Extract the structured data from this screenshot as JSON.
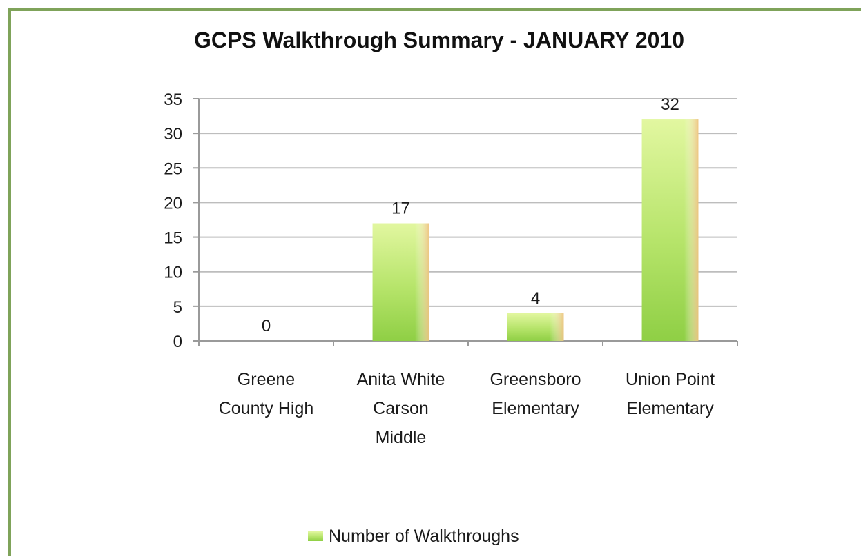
{
  "chart_data": {
    "type": "bar",
    "title": "GCPS Walkthrough Summary - JANUARY 2010",
    "categories": [
      [
        "Greene",
        "County High"
      ],
      [
        "Anita White",
        "Carson",
        "Middle"
      ],
      [
        "Greensboro",
        "Elementary"
      ],
      [
        "Union Point",
        "Elementary"
      ]
    ],
    "series": [
      {
        "name": "Number of Walkthroughs",
        "values": [
          0,
          17,
          4,
          32
        ]
      }
    ],
    "data_labels": [
      "0",
      "17",
      "4",
      "32"
    ],
    "ylim": [
      0,
      35
    ],
    "yticks": [
      0,
      5,
      10,
      15,
      20,
      25,
      30,
      35
    ],
    "grid": true,
    "legend": "bottom",
    "colors": {
      "bar_top": "#e2f7a0",
      "bar_mid": "#b6e46a",
      "bar_bottom": "#8fcf45",
      "bar_edge": "#f0c080",
      "grid": "#bdbdbd",
      "axis": "#9a9a9a",
      "frame": "#7fa35a"
    }
  }
}
